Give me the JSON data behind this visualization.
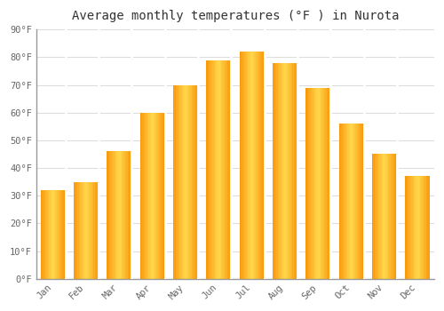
{
  "title": "Average monthly temperatures (°F ) in Nurota",
  "months": [
    "Jan",
    "Feb",
    "Mar",
    "Apr",
    "May",
    "Jun",
    "Jul",
    "Aug",
    "Sep",
    "Oct",
    "Nov",
    "Dec"
  ],
  "values": [
    32,
    35,
    46,
    60,
    70,
    79,
    82,
    78,
    69,
    56,
    45,
    37
  ],
  "bar_color_main": "#FFA500",
  "bar_color_light": "#FFD700",
  "bar_color_dark": "#F08000",
  "background_color": "#FFFFFF",
  "grid_color": "#DDDDDD",
  "ylim": [
    0,
    90
  ],
  "yticks": [
    0,
    10,
    20,
    30,
    40,
    50,
    60,
    70,
    80,
    90
  ],
  "ytick_labels": [
    "0°F",
    "10°F",
    "20°F",
    "30°F",
    "40°F",
    "50°F",
    "60°F",
    "70°F",
    "80°F",
    "90°F"
  ],
  "title_fontsize": 10,
  "tick_fontsize": 7.5,
  "font_family": "monospace",
  "tick_color": "#666666",
  "title_color": "#333333"
}
